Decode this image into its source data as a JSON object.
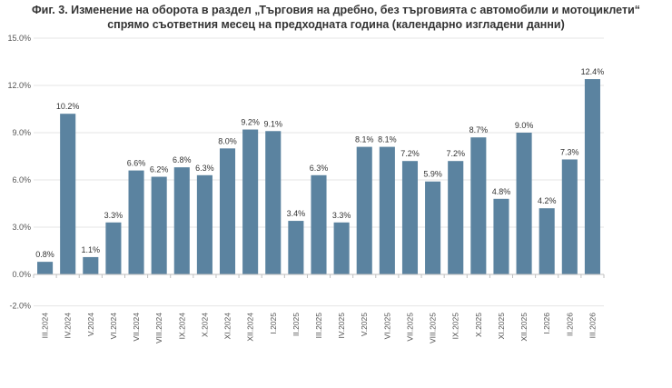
{
  "chart_data": {
    "type": "bar",
    "title": "Фиг. 3. Изменение на оборота в раздел „Търговия на дребно, без търговията с автомобили и мотоциклети“",
    "subtitle": "спрямо съответния месец на предходната година (календарно изгладени данни)",
    "xlabel": "",
    "ylabel": "",
    "ylim": [
      -2.0,
      15.0
    ],
    "yticks": [
      "15.0%",
      "12.0%",
      "9.0%",
      "6.0%",
      "3.0%",
      "0.0%",
      "-2.0%"
    ],
    "ytick_values": [
      15.0,
      12.0,
      9.0,
      6.0,
      3.0,
      0.0,
      -2.0
    ],
    "grid": true,
    "color": "#5b83a0",
    "categories": [
      "III.2024",
      "IV.2024",
      "V.2024",
      "VI.2024",
      "VII.2024",
      "VIII.2024",
      "IX.2024",
      "X.2024",
      "XI.2024",
      "XII.2024",
      "I.2025",
      "II.2025",
      "III.2025",
      "IV.2025",
      "V.2025",
      "VI.2025",
      "VII.2025",
      "VIII.2025",
      "IX.2025",
      "X.2025",
      "XI.2025",
      "XII.2025",
      "I.2026",
      "II.2026",
      "III.2026"
    ],
    "values": [
      0.8,
      10.2,
      1.1,
      3.3,
      6.6,
      6.2,
      6.8,
      6.3,
      8.0,
      9.2,
      9.1,
      3.4,
      6.3,
      3.3,
      8.1,
      8.1,
      7.2,
      5.9,
      7.2,
      8.7,
      4.8,
      9.0,
      4.2,
      7.3,
      12.4
    ],
    "data_labels": [
      "0.8%",
      "10.2%",
      "1.1%",
      "3.3%",
      "6.6%",
      "6.2%",
      "6.8%",
      "6.3%",
      "8.0%",
      "9.2%",
      "9.1%",
      "3.4%",
      "6.3%",
      "3.3%",
      "8.1%",
      "8.1%",
      "7.2%",
      "5.9%",
      "7.2%",
      "8.7%",
      "4.8%",
      "9.0%",
      "4.2%",
      "7.3%",
      "12.4%"
    ]
  }
}
